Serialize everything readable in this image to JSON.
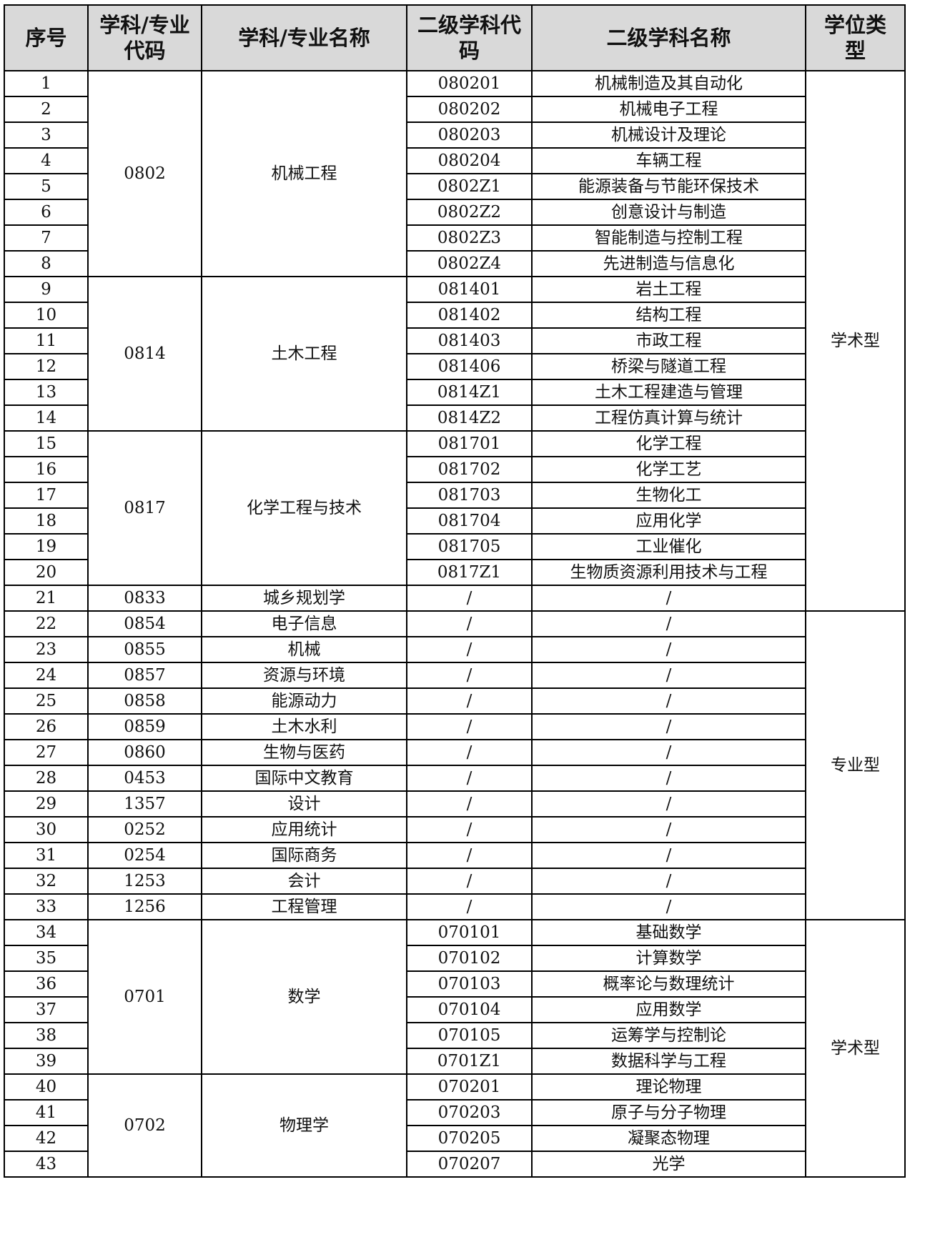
{
  "header": [
    "序号",
    "学科/专业代码",
    "学科/专业名称",
    "二级学科代码",
    "二级学科名称",
    "学位类型"
  ],
  "sections": [
    {
      "type": "学术型",
      "groups": [
        {
          "code": "0802",
          "name": "机械工程",
          "items": [
            [
              "1",
              "080201",
              "机械制造及其自动化"
            ],
            [
              "2",
              "080202",
              "机械电子工程"
            ],
            [
              "3",
              "080203",
              "机械设计及理论"
            ],
            [
              "4",
              "080204",
              "车辆工程"
            ],
            [
              "5",
              "0802Z1",
              "能源装备与节能环保技术"
            ],
            [
              "6",
              "0802Z2",
              "创意设计与制造"
            ],
            [
              "7",
              "0802Z3",
              "智能制造与控制工程"
            ],
            [
              "8",
              "0802Z4",
              "先进制造与信息化"
            ]
          ]
        },
        {
          "code": "0814",
          "name": "土木工程",
          "items": [
            [
              "9",
              "081401",
              "岩土工程"
            ],
            [
              "10",
              "081402",
              "结构工程"
            ],
            [
              "11",
              "081403",
              "市政工程"
            ],
            [
              "12",
              "081406",
              "桥梁与隧道工程"
            ],
            [
              "13",
              "0814Z1",
              "土木工程建造与管理"
            ],
            [
              "14",
              "0814Z2",
              "工程仿真计算与统计"
            ]
          ]
        },
        {
          "code": "0817",
          "name": "化学工程与技术",
          "items": [
            [
              "15",
              "081701",
              "化学工程"
            ],
            [
              "16",
              "081702",
              "化学工艺"
            ],
            [
              "17",
              "081703",
              "生物化工"
            ],
            [
              "18",
              "081704",
              "应用化学"
            ],
            [
              "19",
              "081705",
              "工业催化"
            ],
            [
              "20",
              "0817Z1",
              "生物质资源利用技术与工程"
            ]
          ]
        },
        {
          "code": "0833",
          "name": "城乡规划学",
          "items": [
            [
              "21",
              "/",
              "/"
            ]
          ]
        }
      ]
    },
    {
      "type": "专业型",
      "groups": [
        {
          "code": "0854",
          "name": "电子信息",
          "items": [
            [
              "22",
              "/",
              "/"
            ]
          ]
        },
        {
          "code": "0855",
          "name": "机械",
          "items": [
            [
              "23",
              "/",
              "/"
            ]
          ]
        },
        {
          "code": "0857",
          "name": "资源与环境",
          "items": [
            [
              "24",
              "/",
              "/"
            ]
          ]
        },
        {
          "code": "0858",
          "name": "能源动力",
          "items": [
            [
              "25",
              "/",
              "/"
            ]
          ]
        },
        {
          "code": "0859",
          "name": "土木水利",
          "items": [
            [
              "26",
              "/",
              "/"
            ]
          ]
        },
        {
          "code": "0860",
          "name": "生物与医药",
          "items": [
            [
              "27",
              "/",
              "/"
            ]
          ]
        },
        {
          "code": "0453",
          "name": "国际中文教育",
          "items": [
            [
              "28",
              "/",
              "/"
            ]
          ]
        },
        {
          "code": "1357",
          "name": "设计",
          "items": [
            [
              "29",
              "/",
              "/"
            ]
          ]
        },
        {
          "code": "0252",
          "name": "应用统计",
          "items": [
            [
              "30",
              "/",
              "/"
            ]
          ]
        },
        {
          "code": "0254",
          "name": "国际商务",
          "items": [
            [
              "31",
              "/",
              "/"
            ]
          ]
        },
        {
          "code": "1253",
          "name": "会计",
          "items": [
            [
              "32",
              "/",
              "/"
            ]
          ]
        },
        {
          "code": "1256",
          "name": "工程管理",
          "items": [
            [
              "33",
              "/",
              "/"
            ]
          ]
        }
      ]
    },
    {
      "type": "学术型",
      "groups": [
        {
          "code": "0701",
          "name": "数学",
          "items": [
            [
              "34",
              "070101",
              "基础数学"
            ],
            [
              "35",
              "070102",
              "计算数学"
            ],
            [
              "36",
              "070103",
              "概率论与数理统计"
            ],
            [
              "37",
              "070104",
              "应用数学"
            ],
            [
              "38",
              "070105",
              "运筹学与控制论"
            ],
            [
              "39",
              "0701Z1",
              "数据科学与工程"
            ]
          ]
        },
        {
          "code": "0702",
          "name": "物理学",
          "items": [
            [
              "40",
              "070201",
              "理论物理"
            ],
            [
              "41",
              "070203",
              "原子与分子物理"
            ],
            [
              "42",
              "070205",
              "凝聚态物理"
            ],
            [
              "43",
              "070207",
              "光学"
            ]
          ]
        }
      ]
    }
  ]
}
